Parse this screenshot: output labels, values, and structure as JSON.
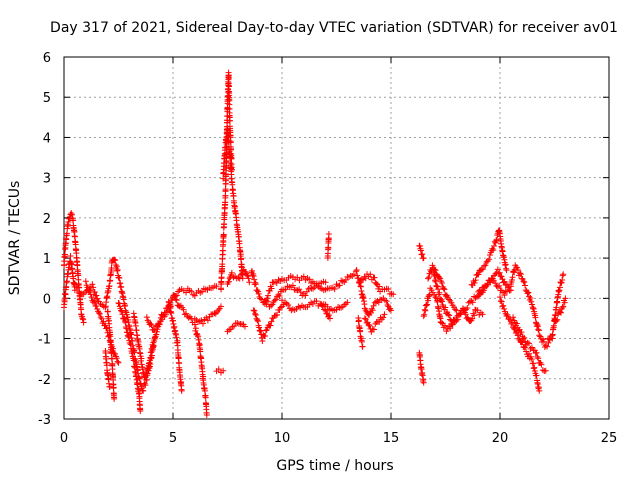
{
  "chart_data": {
    "type": "scatter",
    "title": "Day 317 of 2021, Sidereal Day-to-day VTEC variation (SDTVAR) for receiver av01",
    "xlabel": "GPS time / hours",
    "ylabel": "SDTVAR / TECUs",
    "xlim": [
      0,
      25
    ],
    "ylim": [
      -3,
      6
    ],
    "xticks": [
      "0",
      "5",
      "10",
      "15",
      "20",
      "25"
    ],
    "yticks": [
      "-3",
      "-2",
      "-1",
      "0",
      "1",
      "2",
      "3",
      "4",
      "5",
      "6"
    ],
    "grid": true,
    "marker": "+",
    "color": "#ff0000",
    "series": [
      {
        "name": "SDTVAR",
        "traces": [
          [
            [
              0.0,
              0.8
            ],
            [
              0.1,
              1.5
            ],
            [
              0.2,
              1.9
            ],
            [
              0.3,
              2.1
            ],
            [
              0.4,
              2.0
            ],
            [
              0.5,
              1.5
            ],
            [
              0.6,
              0.9
            ],
            [
              0.7,
              0.2
            ],
            [
              0.8,
              -0.4
            ],
            [
              0.9,
              -0.6
            ]
          ],
          [
            [
              0.0,
              -0.2
            ],
            [
              0.1,
              0.3
            ],
            [
              0.2,
              0.7
            ],
            [
              0.3,
              1.0
            ],
            [
              0.4,
              0.6
            ],
            [
              0.5,
              0.2
            ]
          ],
          [
            [
              0.5,
              0.3
            ],
            [
              0.9,
              0.1
            ],
            [
              1.3,
              0.3
            ],
            [
              1.6,
              -0.1
            ],
            [
              1.9,
              -0.2
            ],
            [
              2.1,
              0.4
            ],
            [
              2.2,
              0.9
            ],
            [
              2.3,
              1.0
            ],
            [
              2.4,
              0.8
            ],
            [
              2.6,
              0.3
            ],
            [
              2.8,
              -0.2
            ],
            [
              3.0,
              -0.7
            ],
            [
              3.2,
              -1.3
            ],
            [
              3.4,
              -1.9
            ],
            [
              3.6,
              -2.3
            ],
            [
              3.8,
              -2.0
            ],
            [
              4.0,
              -1.5
            ],
            [
              4.2,
              -0.9
            ],
            [
              4.5,
              -0.4
            ],
            [
              4.8,
              -0.2
            ],
            [
              5.0,
              0.0
            ],
            [
              5.3,
              0.2
            ],
            [
              5.6,
              0.2
            ],
            [
              6.0,
              0.1
            ],
            [
              6.5,
              0.2
            ],
            [
              7.0,
              0.3
            ]
          ],
          [
            [
              1.0,
              0.4
            ],
            [
              1.3,
              0.0
            ],
            [
              1.6,
              -0.4
            ],
            [
              1.9,
              -0.7
            ],
            [
              2.1,
              -1.0
            ],
            [
              2.3,
              -1.4
            ],
            [
              2.5,
              -1.6
            ]
          ],
          [
            [
              2.0,
              -0.3
            ],
            [
              2.1,
              -0.8
            ],
            [
              2.2,
              -1.5
            ],
            [
              2.25,
              -2.0
            ],
            [
              2.3,
              -2.5
            ]
          ],
          [
            [
              1.9,
              -1.3
            ],
            [
              2.0,
              -1.9
            ],
            [
              2.1,
              -2.2
            ]
          ],
          [
            [
              2.5,
              -0.1
            ],
            [
              2.8,
              -0.6
            ],
            [
              3.1,
              -1.3
            ],
            [
              3.3,
              -1.9
            ],
            [
              3.45,
              -2.4
            ],
            [
              3.5,
              -2.8
            ]
          ],
          [
            [
              3.2,
              -0.4
            ],
            [
              3.5,
              -1.4
            ],
            [
              3.7,
              -2.0
            ],
            [
              3.9,
              -1.6
            ],
            [
              4.1,
              -1.1
            ]
          ],
          [
            [
              3.8,
              -0.5
            ],
            [
              4.1,
              -0.8
            ],
            [
              4.5,
              -0.5
            ],
            [
              4.9,
              -0.2
            ]
          ],
          [
            [
              4.8,
              -0.1
            ],
            [
              5.0,
              -0.6
            ],
            [
              5.2,
              -1.1
            ],
            [
              5.3,
              -1.8
            ],
            [
              5.4,
              -2.3
            ]
          ],
          [
            [
              5.0,
              0.1
            ],
            [
              5.3,
              -0.2
            ],
            [
              5.6,
              -0.4
            ],
            [
              5.9,
              -0.6
            ]
          ],
          [
            [
              6.0,
              -0.7
            ],
            [
              6.2,
              -1.1
            ],
            [
              6.3,
              -1.6
            ],
            [
              6.4,
              -2.1
            ],
            [
              6.5,
              -2.5
            ],
            [
              6.55,
              -2.9
            ]
          ],
          [
            [
              6.0,
              -0.5
            ],
            [
              6.3,
              -0.6
            ],
            [
              6.6,
              -0.5
            ],
            [
              6.9,
              -0.4
            ],
            [
              7.2,
              -0.2
            ]
          ],
          [
            [
              7.0,
              -1.8
            ],
            [
              7.3,
              -1.8
            ]
          ],
          [
            [
              7.2,
              0.2
            ],
            [
              7.4,
              2.5
            ],
            [
              7.45,
              3.5
            ],
            [
              7.5,
              4.8
            ],
            [
              7.55,
              5.6
            ],
            [
              7.6,
              4.5
            ],
            [
              7.7,
              3.2
            ]
          ],
          [
            [
              7.3,
              3.0
            ],
            [
              7.4,
              3.8
            ],
            [
              7.5,
              4.2
            ],
            [
              7.6,
              3.6
            ],
            [
              7.7,
              2.9
            ],
            [
              7.8,
              2.4
            ],
            [
              7.9,
              2.0
            ],
            [
              8.0,
              1.6
            ],
            [
              8.1,
              1.1
            ],
            [
              8.2,
              0.5
            ]
          ],
          [
            [
              7.5,
              0.3
            ],
            [
              7.7,
              0.6
            ],
            [
              8.0,
              0.5
            ],
            [
              8.3,
              0.7
            ],
            [
              8.5,
              0.4
            ]
          ],
          [
            [
              7.5,
              -0.8
            ],
            [
              7.8,
              -0.7
            ],
            [
              8.1,
              -0.6
            ],
            [
              8.3,
              -0.7
            ]
          ],
          [
            [
              8.6,
              0.7
            ],
            [
              8.8,
              0.3
            ],
            [
              9.0,
              0.0
            ],
            [
              9.5,
              -0.2
            ],
            [
              10.0,
              0.2
            ],
            [
              10.5,
              0.3
            ],
            [
              11.0,
              0.1
            ],
            [
              11.5,
              0.3
            ],
            [
              12.0,
              0.2
            ],
            [
              12.5,
              0.3
            ],
            [
              13.0,
              0.5
            ],
            [
              13.3,
              0.6
            ]
          ],
          [
            [
              8.7,
              -0.3
            ],
            [
              8.9,
              -0.6
            ],
            [
              9.1,
              -1.0
            ],
            [
              9.3,
              -0.8
            ],
            [
              9.6,
              -0.5
            ],
            [
              10.0,
              -0.2
            ]
          ],
          [
            [
              9.2,
              -0.1
            ],
            [
              9.6,
              0.4
            ],
            [
              10.0,
              0.5
            ],
            [
              10.5,
              0.5
            ],
            [
              11.0,
              0.5
            ],
            [
              11.5,
              0.4
            ],
            [
              12.0,
              0.4
            ]
          ],
          [
            [
              10.0,
              -0.1
            ],
            [
              10.5,
              -0.3
            ],
            [
              11.0,
              -0.2
            ],
            [
              11.5,
              -0.1
            ],
            [
              12.0,
              -0.2
            ],
            [
              12.5,
              -0.3
            ],
            [
              13.0,
              -0.1
            ]
          ],
          [
            [
              11.8,
              -0.2
            ],
            [
              12.0,
              -0.3
            ],
            [
              12.2,
              -0.5
            ]
          ],
          [
            [
              12.1,
              1.0
            ],
            [
              12.15,
              1.6
            ]
          ],
          [
            [
              13.4,
              0.7
            ],
            [
              13.6,
              0.3
            ],
            [
              13.8,
              -0.2
            ],
            [
              14.0,
              -0.4
            ],
            [
              14.2,
              -0.2
            ],
            [
              14.5,
              0.0
            ],
            [
              14.8,
              -0.1
            ],
            [
              15.0,
              -0.3
            ]
          ],
          [
            [
              13.5,
              -0.5
            ],
            [
              13.6,
              -0.9
            ],
            [
              13.7,
              -1.2
            ]
          ],
          [
            [
              13.6,
              0.4
            ],
            [
              13.9,
              0.6
            ],
            [
              14.2,
              0.5
            ],
            [
              14.5,
              0.2
            ],
            [
              14.8,
              0.2
            ],
            [
              15.1,
              0.1
            ]
          ],
          [
            [
              13.8,
              -0.5
            ],
            [
              14.1,
              -0.8
            ],
            [
              14.4,
              -0.6
            ],
            [
              14.7,
              -0.4
            ]
          ],
          [
            [
              16.3,
              1.3
            ],
            [
              16.4,
              1.1
            ],
            [
              16.5,
              1.0
            ]
          ],
          [
            [
              16.3,
              -1.3
            ],
            [
              16.4,
              -1.8
            ],
            [
              16.5,
              -2.1
            ]
          ],
          [
            [
              16.5,
              -0.4
            ],
            [
              16.8,
              0.2
            ],
            [
              17.1,
              0.0
            ],
            [
              17.3,
              -0.6
            ],
            [
              17.6,
              -0.8
            ],
            [
              18.0,
              -0.5
            ],
            [
              18.5,
              -0.2
            ],
            [
              19.0,
              0.1
            ],
            [
              19.5,
              0.4
            ],
            [
              19.9,
              0.7
            ],
            [
              20.2,
              0.4
            ],
            [
              20.5,
              0.2
            ]
          ],
          [
            [
              16.7,
              0.5
            ],
            [
              16.9,
              0.8
            ],
            [
              17.1,
              0.3
            ],
            [
              17.4,
              -0.2
            ],
            [
              17.8,
              -0.6
            ],
            [
              18.2,
              -0.4
            ]
          ],
          [
            [
              17.0,
              0.7
            ],
            [
              17.3,
              0.4
            ],
            [
              17.6,
              0.0
            ],
            [
              18.0,
              -0.3
            ]
          ],
          [
            [
              18.3,
              -0.3
            ],
            [
              18.6,
              -0.6
            ],
            [
              18.9,
              -0.3
            ],
            [
              19.2,
              -0.4
            ]
          ],
          [
            [
              18.7,
              0.3
            ],
            [
              19.1,
              0.7
            ],
            [
              19.5,
              1.0
            ],
            [
              19.8,
              1.4
            ],
            [
              19.95,
              1.7
            ],
            [
              20.1,
              1.2
            ],
            [
              20.3,
              0.7
            ]
          ],
          [
            [
              19.0,
              0.0
            ],
            [
              19.3,
              0.3
            ],
            [
              19.6,
              0.5
            ],
            [
              19.9,
              0.3
            ],
            [
              20.2,
              0.1
            ],
            [
              20.5,
              0.3
            ]
          ],
          [
            [
              20.0,
              0.0
            ],
            [
              20.3,
              -0.4
            ],
            [
              20.6,
              -0.7
            ],
            [
              20.9,
              -1.0
            ],
            [
              21.2,
              -1.3
            ],
            [
              21.5,
              -1.6
            ],
            [
              21.7,
              -2.0
            ],
            [
              21.8,
              -2.3
            ]
          ],
          [
            [
              20.6,
              -0.5
            ],
            [
              20.9,
              -0.8
            ],
            [
              21.2,
              -1.1
            ],
            [
              21.6,
              -1.3
            ],
            [
              21.9,
              -1.7
            ],
            [
              22.1,
              -1.8
            ]
          ],
          [
            [
              20.5,
              0.4
            ],
            [
              20.7,
              0.8
            ],
            [
              21.0,
              0.5
            ],
            [
              21.3,
              0.1
            ],
            [
              21.5,
              -0.2
            ],
            [
              21.8,
              -0.9
            ],
            [
              22.1,
              -1.2
            ],
            [
              22.4,
              -1.0
            ]
          ],
          [
            [
              22.2,
              -1.0
            ],
            [
              22.4,
              -0.9
            ],
            [
              22.7,
              0.2
            ],
            [
              22.9,
              0.6
            ]
          ],
          [
            [
              22.5,
              -0.6
            ],
            [
              22.8,
              -0.3
            ],
            [
              23.0,
              0.0
            ]
          ]
        ]
      }
    ]
  }
}
